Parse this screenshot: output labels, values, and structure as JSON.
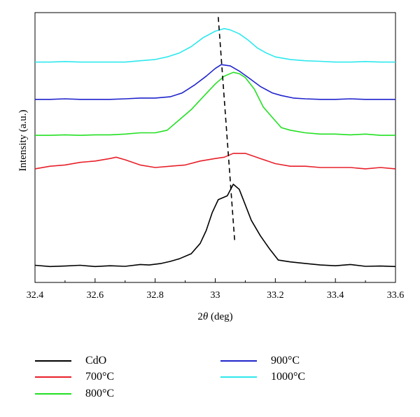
{
  "chart_data": {
    "type": "line",
    "xlabel": "2θ (deg)",
    "ylabel": "Intensity (a.u.)",
    "xlim": [
      32.4,
      33.6
    ],
    "x_ticks": [
      "32.4",
      "32.6",
      "32.8",
      "33",
      "33.2",
      "33.4",
      "33.6"
    ],
    "y_ticks": [],
    "grid": false,
    "legend_position": "bottom",
    "y_scale": "offset (stacked curves, arbitrary units 0–100)",
    "series": [
      {
        "name": "CdO",
        "color": "#000000",
        "points": [
          [
            32.4,
            4.5
          ],
          [
            32.45,
            4.0
          ],
          [
            32.5,
            4.2
          ],
          [
            32.55,
            4.5
          ],
          [
            32.6,
            4.0
          ],
          [
            32.65,
            4.3
          ],
          [
            32.7,
            4.1
          ],
          [
            32.75,
            4.8
          ],
          [
            32.78,
            4.6
          ],
          [
            32.82,
            5.2
          ],
          [
            32.85,
            6.0
          ],
          [
            32.88,
            7.0
          ],
          [
            32.92,
            9.0
          ],
          [
            32.95,
            13.0
          ],
          [
            32.97,
            18.0
          ],
          [
            32.99,
            25.0
          ],
          [
            33.01,
            30.0
          ],
          [
            33.04,
            31.5
          ],
          [
            33.06,
            36.0
          ],
          [
            33.08,
            34.0
          ],
          [
            33.1,
            28.0
          ],
          [
            33.12,
            22.0
          ],
          [
            33.15,
            16.0
          ],
          [
            33.18,
            11.0
          ],
          [
            33.21,
            6.5
          ],
          [
            33.25,
            5.8
          ],
          [
            33.3,
            5.2
          ],
          [
            33.35,
            4.6
          ],
          [
            33.4,
            4.3
          ],
          [
            33.45,
            4.8
          ],
          [
            33.5,
            4.1
          ],
          [
            33.55,
            4.2
          ],
          [
            33.6,
            4.0
          ]
        ]
      },
      {
        "name": "700°C",
        "color": "#e8202a",
        "points": [
          [
            32.4,
            42.0
          ],
          [
            32.45,
            43.0
          ],
          [
            32.5,
            43.5
          ],
          [
            32.55,
            44.5
          ],
          [
            32.6,
            45.0
          ],
          [
            32.65,
            46.0
          ],
          [
            32.67,
            46.5
          ],
          [
            32.7,
            45.5
          ],
          [
            32.75,
            43.5
          ],
          [
            32.8,
            42.5
          ],
          [
            32.85,
            43.0
          ],
          [
            32.9,
            43.5
          ],
          [
            32.95,
            45.0
          ],
          [
            33.0,
            46.0
          ],
          [
            33.03,
            46.5
          ],
          [
            33.06,
            48.0
          ],
          [
            33.1,
            48.0
          ],
          [
            33.15,
            46.0
          ],
          [
            33.2,
            44.0
          ],
          [
            33.25,
            43.0
          ],
          [
            33.3,
            43.0
          ],
          [
            33.35,
            42.5
          ],
          [
            33.4,
            42.5
          ],
          [
            33.45,
            42.5
          ],
          [
            33.5,
            42.0
          ],
          [
            33.55,
            42.5
          ],
          [
            33.6,
            42.0
          ]
        ]
      },
      {
        "name": "800°C",
        "color": "#22e022",
        "points": [
          [
            32.4,
            55.0
          ],
          [
            32.45,
            55.0
          ],
          [
            32.5,
            55.2
          ],
          [
            32.55,
            55.0
          ],
          [
            32.6,
            55.2
          ],
          [
            32.65,
            55.2
          ],
          [
            32.7,
            55.5
          ],
          [
            32.75,
            56.0
          ],
          [
            32.8,
            56.0
          ],
          [
            32.84,
            57.0
          ],
          [
            32.88,
            61.0
          ],
          [
            32.92,
            65.0
          ],
          [
            32.96,
            70.0
          ],
          [
            33.0,
            75.0
          ],
          [
            33.03,
            78.0
          ],
          [
            33.06,
            79.5
          ],
          [
            33.08,
            79.0
          ],
          [
            33.1,
            77.5
          ],
          [
            33.13,
            73.0
          ],
          [
            33.16,
            66.0
          ],
          [
            33.19,
            62.0
          ],
          [
            33.22,
            58.0
          ],
          [
            33.25,
            57.0
          ],
          [
            33.3,
            56.0
          ],
          [
            33.35,
            55.5
          ],
          [
            33.4,
            55.5
          ],
          [
            33.45,
            55.2
          ],
          [
            33.5,
            55.5
          ],
          [
            33.55,
            55.0
          ],
          [
            33.6,
            55.0
          ]
        ]
      },
      {
        "name": "900°C",
        "color": "#1f24cc",
        "points": [
          [
            32.4,
            69.0
          ],
          [
            32.45,
            69.0
          ],
          [
            32.5,
            69.2
          ],
          [
            32.55,
            69.0
          ],
          [
            32.6,
            69.0
          ],
          [
            32.65,
            69.0
          ],
          [
            32.7,
            69.2
          ],
          [
            32.75,
            69.5
          ],
          [
            32.8,
            69.5
          ],
          [
            32.85,
            70.0
          ],
          [
            32.89,
            71.5
          ],
          [
            32.93,
            74.5
          ],
          [
            32.97,
            78.0
          ],
          [
            33.0,
            81.0
          ],
          [
            33.02,
            82.5
          ],
          [
            33.05,
            82.0
          ],
          [
            33.08,
            80.0
          ],
          [
            33.11,
            77.5
          ],
          [
            33.15,
            74.0
          ],
          [
            33.19,
            71.5
          ],
          [
            33.22,
            70.5
          ],
          [
            33.26,
            69.5
          ],
          [
            33.3,
            69.2
          ],
          [
            33.35,
            69.0
          ],
          [
            33.4,
            69.0
          ],
          [
            33.45,
            69.2
          ],
          [
            33.5,
            69.0
          ],
          [
            33.55,
            69.0
          ],
          [
            33.6,
            69.0
          ]
        ]
      },
      {
        "name": "1000°C",
        "color": "#2ee8ee",
        "points": [
          [
            32.4,
            83.5
          ],
          [
            32.45,
            83.5
          ],
          [
            32.5,
            83.7
          ],
          [
            32.55,
            83.5
          ],
          [
            32.6,
            83.5
          ],
          [
            32.65,
            83.5
          ],
          [
            32.7,
            83.5
          ],
          [
            32.75,
            84.0
          ],
          [
            32.8,
            84.5
          ],
          [
            32.84,
            85.5
          ],
          [
            32.88,
            87.0
          ],
          [
            32.92,
            89.5
          ],
          [
            32.96,
            93.0
          ],
          [
            33.0,
            95.5
          ],
          [
            33.03,
            96.5
          ],
          [
            33.05,
            96.0
          ],
          [
            33.08,
            94.5
          ],
          [
            33.11,
            92.0
          ],
          [
            33.14,
            89.0
          ],
          [
            33.17,
            87.0
          ],
          [
            33.2,
            85.5
          ],
          [
            33.25,
            84.5
          ],
          [
            33.3,
            84.0
          ],
          [
            33.35,
            83.8
          ],
          [
            33.4,
            83.5
          ],
          [
            33.45,
            83.5
          ],
          [
            33.5,
            83.7
          ],
          [
            33.55,
            83.5
          ],
          [
            33.6,
            83.5
          ]
        ]
      }
    ],
    "dashed_guide": {
      "color": "#000000",
      "points": [
        [
          33.01,
          101.0
        ],
        [
          33.065,
          13.5
        ]
      ]
    }
  },
  "legend": [
    {
      "label": "CdO",
      "color": "#000000"
    },
    {
      "label": "700°C",
      "color": "#e8202a"
    },
    {
      "label": "800°C",
      "color": "#22e022"
    },
    {
      "label": "900°C",
      "color": "#1f24cc"
    },
    {
      "label": "1000°C",
      "color": "#2ee8ee"
    }
  ]
}
